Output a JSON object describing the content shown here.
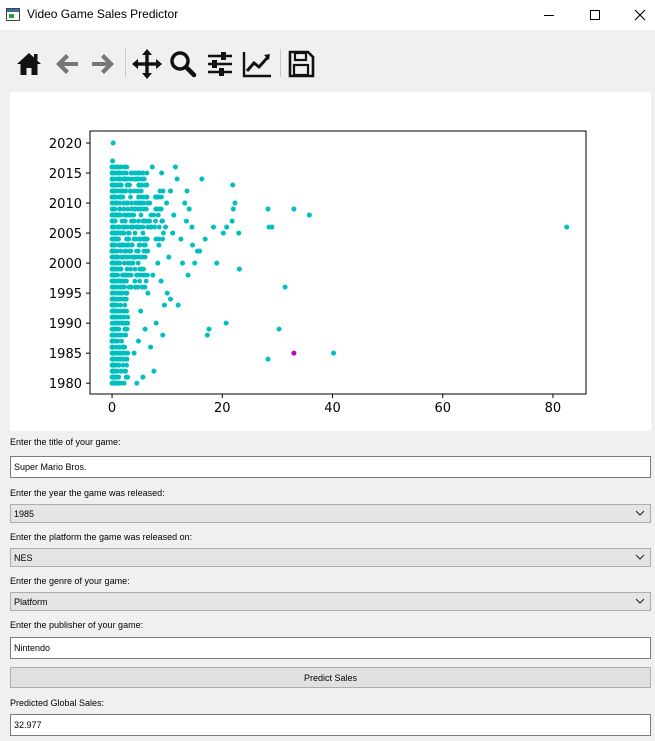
{
  "window": {
    "title": "Video Game Sales Predictor"
  },
  "toolbar": {
    "icons": [
      "home-icon",
      "back-arrow-icon",
      "forward-arrow-icon",
      "pan-move-icon",
      "zoom-magnifier-icon",
      "configure-subplots-icon",
      "edit-axis-line-icon",
      "save-floppy-icon"
    ]
  },
  "form": {
    "title_label": "Enter the title of your game:",
    "title_value": "Super Mario Bros.",
    "year_label": "Enter the year the game was released:",
    "year_value": "1985",
    "platform_label": "Enter the platform the game was released on:",
    "platform_value": "NES",
    "genre_label": "Enter the genre of your game:",
    "genre_value": "Platform",
    "publisher_label": "Enter the publisher of your game:",
    "publisher_value": "Nintendo",
    "predict_button": "Predict Sales",
    "result_label": "Predicted Global Sales:",
    "result_value": "32.977"
  },
  "chart_data": {
    "type": "scatter",
    "title": "",
    "xlabel": "",
    "ylabel": "",
    "xlim": [
      -4,
      86
    ],
    "ylim": [
      1978.2,
      2022
    ],
    "xticks": [
      0,
      20,
      40,
      60,
      80
    ],
    "yticks": [
      1980,
      1985,
      1990,
      1995,
      2000,
      2005,
      2010,
      2015,
      2020
    ],
    "grid": false,
    "colors": {
      "series": "#00bfbf",
      "highlight": "#bf00bf"
    },
    "series": [
      {
        "values": [
          [
            0.2,
            2020
          ],
          [
            0.1,
            2017
          ],
          [
            0.3,
            2016
          ],
          [
            82.5,
            2006
          ],
          [
            40.2,
            1985
          ],
          [
            35.8,
            2008
          ],
          [
            33.0,
            2009
          ],
          [
            31.4,
            1996
          ],
          [
            30.3,
            1989
          ],
          [
            29.0,
            2006
          ],
          [
            28.5,
            2006
          ],
          [
            28.3,
            2009
          ],
          [
            28.3,
            1984
          ],
          [
            23.1,
            1999
          ],
          [
            23.0,
            2005
          ],
          [
            22.0,
            2009
          ],
          [
            21.8,
            2007
          ],
          [
            22.3,
            2010
          ],
          [
            21.9,
            2013
          ],
          [
            20.7,
            1990
          ],
          [
            20.8,
            2006
          ],
          [
            20.2,
            2005
          ],
          [
            19.0,
            2000
          ],
          [
            18.4,
            2006
          ],
          [
            17.6,
            1989
          ],
          [
            17.3,
            1988
          ],
          [
            16.9,
            2004
          ],
          [
            15.9,
            2002
          ],
          [
            15.5,
            2002
          ],
          [
            15.0,
            2000
          ],
          [
            14.6,
            2003
          ],
          [
            14.5,
            2006
          ],
          [
            13.5,
            2007
          ],
          [
            13.2,
            2010
          ],
          [
            13.6,
            2012
          ],
          [
            16.3,
            2014
          ],
          [
            14.0,
            2009
          ],
          [
            13.8,
            1998
          ],
          [
            12.8,
            2000
          ],
          [
            12.5,
            2004
          ],
          [
            12.0,
            1993
          ],
          [
            11.8,
            2014
          ],
          [
            11.5,
            2016
          ],
          [
            11.2,
            2008
          ],
          [
            11.0,
            2005
          ],
          [
            10.6,
            1994
          ],
          [
            10.6,
            2012
          ],
          [
            10.3,
            2001
          ],
          [
            10.0,
            1995
          ],
          [
            9.9,
            2010
          ],
          [
            9.7,
            2006
          ],
          [
            9.5,
            1993
          ],
          [
            9.2,
            1988
          ],
          [
            9.0,
            2015
          ],
          [
            8.9,
            1997
          ],
          [
            8.7,
            2009
          ],
          [
            8.5,
            2003
          ],
          [
            8.3,
            2000
          ],
          [
            8.0,
            1990
          ],
          [
            7.9,
            2011
          ],
          [
            7.6,
            1982
          ],
          [
            7.4,
            1998
          ],
          [
            7.3,
            2016
          ],
          [
            7.0,
            1986
          ],
          [
            6.8,
            2007
          ],
          [
            6.5,
            1995
          ],
          [
            6.3,
            2013
          ],
          [
            6.0,
            1989
          ],
          [
            5.8,
            2004
          ],
          [
            5.6,
            1981
          ],
          [
            5.4,
            1999
          ],
          [
            5.2,
            1992
          ],
          [
            5.0,
            2010
          ],
          [
            4.8,
            1987
          ],
          [
            4.6,
            2014
          ],
          [
            4.5,
            1980
          ],
          [
            4.3,
            1996
          ],
          [
            4.2,
            2001
          ],
          [
            4.0,
            1985
          ]
        ]
      },
      {
        "values": [
          [
            33.0,
            1985
          ]
        ]
      }
    ]
  }
}
